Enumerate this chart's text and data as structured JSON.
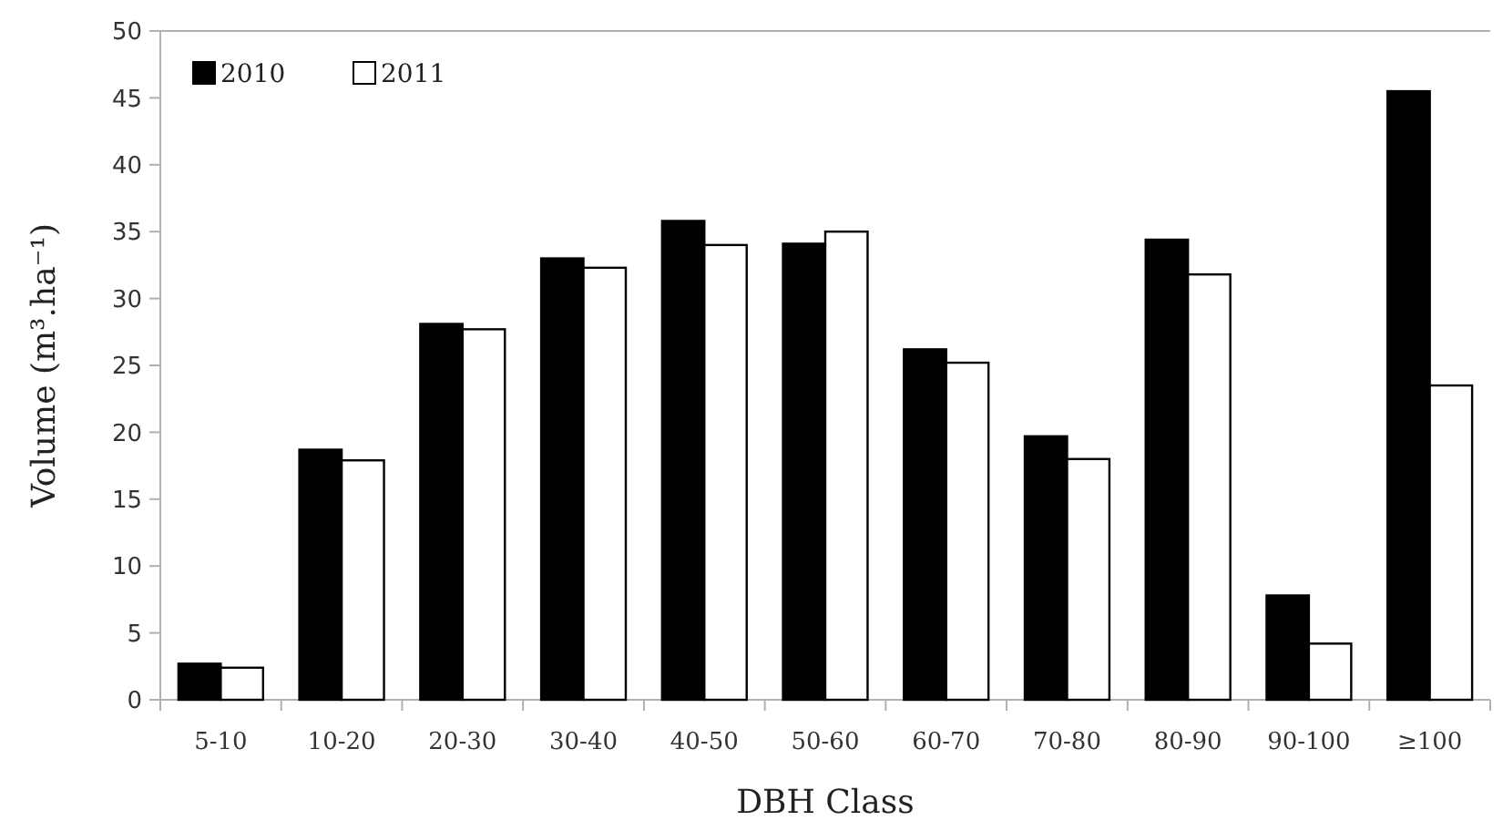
{
  "chart_data": {
    "type": "bar",
    "xlabel": "DBH Class",
    "ylabel": "Volume (m³.ha⁻¹)",
    "categories": [
      "5-10",
      "10-20",
      "20-30",
      "30-40",
      "40-50",
      "50-60",
      "60-70",
      "70-80",
      "80-90",
      "90-100",
      "≥100"
    ],
    "series": [
      {
        "name": "2010",
        "color": "#000000",
        "values": [
          2.7,
          18.7,
          28.1,
          33.0,
          35.8,
          34.1,
          26.2,
          19.7,
          34.4,
          7.8,
          45.5
        ]
      },
      {
        "name": "2011",
        "color": "#ffffff",
        "values": [
          2.4,
          17.9,
          27.7,
          32.3,
          34.0,
          35.0,
          25.2,
          18.0,
          31.8,
          4.2,
          23.5
        ]
      }
    ],
    "ylim": [
      0,
      50
    ],
    "yticks": [
      0,
      5,
      10,
      15,
      20,
      25,
      30,
      35,
      40,
      45,
      50
    ],
    "grid": false,
    "legend": "top left"
  }
}
